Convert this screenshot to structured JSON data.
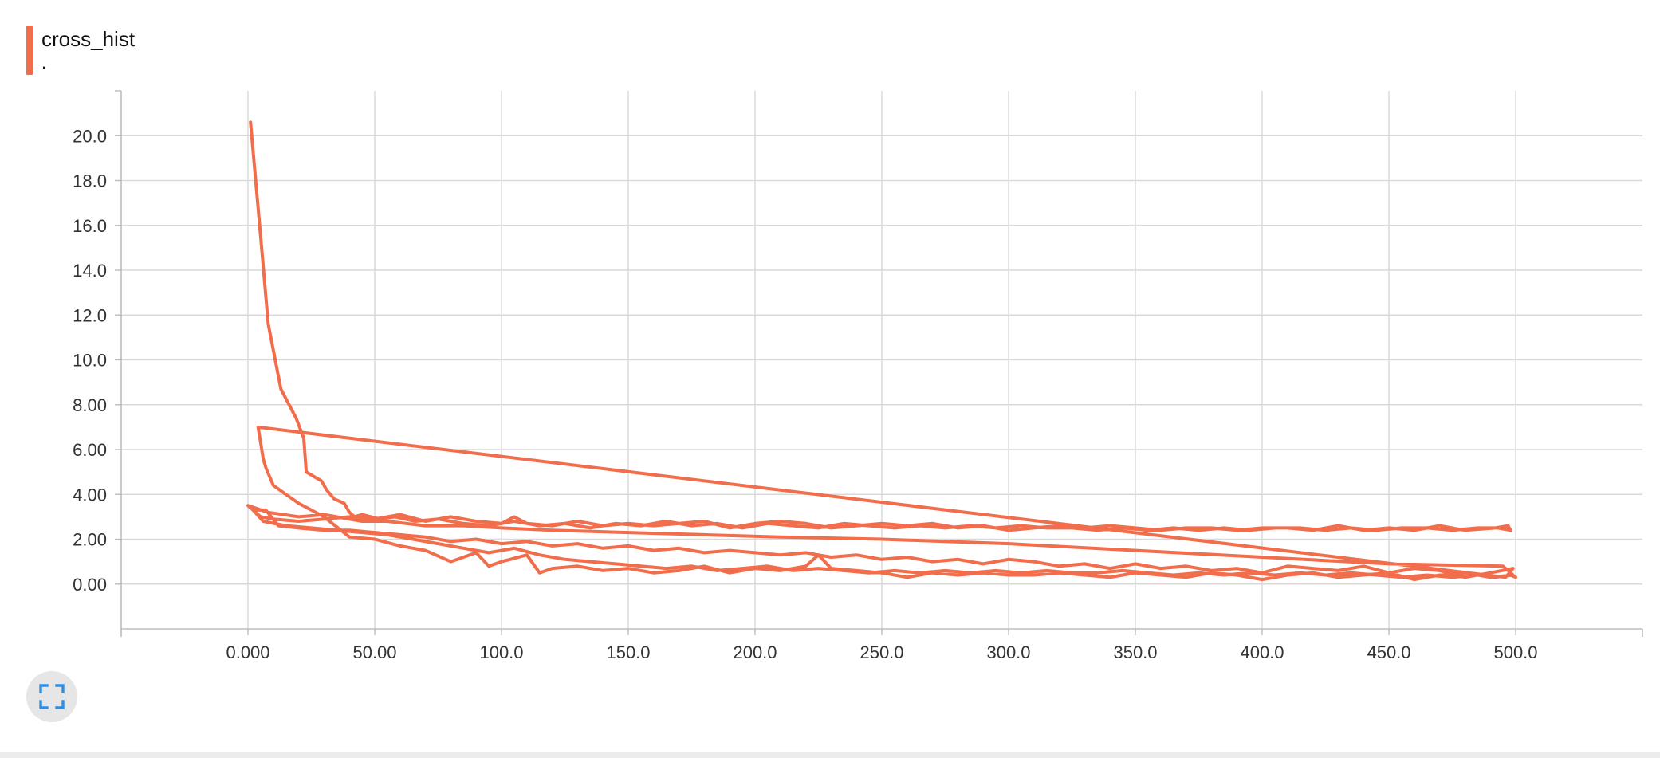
{
  "card": {
    "title": "cross_hist",
    "subtitle": ".",
    "expand_icon": "fullscreen-icon"
  },
  "colors": {
    "series": "#f26d4b",
    "grid": "#d9d9d9",
    "axis": "#bdbdbd",
    "tick_text": "#333333",
    "button_bg": "#e6e6e6",
    "button_icon": "#2f8de4"
  },
  "chart_data": {
    "type": "line",
    "title": "cross_hist",
    "subtitle": ".",
    "xlabel": "",
    "ylabel": "",
    "xlim": [
      -50,
      550
    ],
    "ylim": [
      -2,
      22
    ],
    "grid": true,
    "x_ticks": [
      "0.000",
      "50.00",
      "100.0",
      "150.0",
      "200.0",
      "250.0",
      "300.0",
      "350.0",
      "400.0",
      "450.0",
      "500.0"
    ],
    "y_ticks": [
      "0.00",
      "2.00",
      "4.00",
      "6.00",
      "8.00",
      "10.0",
      "12.0",
      "14.0",
      "16.0",
      "18.0",
      "20.0"
    ],
    "series": [
      {
        "color": "#f26d4b",
        "points": [
          [
            1,
            20.6
          ],
          [
            5,
            15.5
          ],
          [
            8,
            11.6
          ],
          [
            13,
            8.7
          ],
          [
            19,
            7.4
          ],
          [
            22,
            6.5
          ],
          [
            23,
            5.0
          ],
          [
            29,
            4.6
          ],
          [
            31,
            4.2
          ],
          [
            34,
            3.8
          ],
          [
            38,
            3.6
          ],
          [
            40,
            3.2
          ],
          [
            42,
            3.0
          ],
          [
            45,
            3.1
          ],
          [
            52,
            2.9
          ],
          [
            58,
            3.0
          ],
          [
            66,
            2.8
          ],
          [
            75,
            2.9
          ],
          [
            85,
            2.7
          ],
          [
            95,
            2.6
          ],
          [
            105,
            2.8
          ],
          [
            115,
            2.6
          ],
          [
            125,
            2.7
          ],
          [
            135,
            2.5
          ],
          [
            145,
            2.7
          ],
          [
            155,
            2.6
          ],
          [
            165,
            2.8
          ],
          [
            175,
            2.6
          ],
          [
            185,
            2.7
          ],
          [
            195,
            2.5
          ],
          [
            205,
            2.7
          ],
          [
            215,
            2.6
          ],
          [
            225,
            2.5
          ],
          [
            235,
            2.7
          ],
          [
            245,
            2.6
          ],
          [
            255,
            2.5
          ],
          [
            265,
            2.6
          ],
          [
            275,
            2.5
          ],
          [
            285,
            2.6
          ],
          [
            295,
            2.5
          ],
          [
            305,
            2.6
          ],
          [
            315,
            2.5
          ],
          [
            325,
            2.5
          ],
          [
            335,
            2.4
          ],
          [
            345,
            2.5
          ],
          [
            355,
            2.4
          ],
          [
            365,
            2.5
          ],
          [
            375,
            2.4
          ],
          [
            385,
            2.5
          ],
          [
            395,
            2.4
          ],
          [
            405,
            2.5
          ],
          [
            415,
            2.5
          ],
          [
            425,
            2.4
          ],
          [
            435,
            2.5
          ],
          [
            445,
            2.4
          ],
          [
            455,
            2.5
          ],
          [
            465,
            2.5
          ],
          [
            475,
            2.4
          ],
          [
            485,
            2.5
          ],
          [
            493,
            2.5
          ],
          [
            498,
            2.4
          ],
          [
            497,
            2.6
          ],
          [
            492,
            2.5
          ],
          [
            480,
            2.4
          ],
          [
            470,
            2.6
          ],
          [
            460,
            2.4
          ],
          [
            450,
            2.5
          ],
          [
            440,
            2.4
          ],
          [
            430,
            2.6
          ],
          [
            420,
            2.4
          ],
          [
            410,
            2.5
          ],
          [
            400,
            2.5
          ],
          [
            390,
            2.4
          ],
          [
            380,
            2.5
          ],
          [
            370,
            2.5
          ],
          [
            360,
            2.4
          ],
          [
            350,
            2.5
          ],
          [
            340,
            2.6
          ],
          [
            330,
            2.5
          ],
          [
            320,
            2.6
          ],
          [
            310,
            2.5
          ],
          [
            300,
            2.4
          ],
          [
            290,
            2.6
          ],
          [
            280,
            2.5
          ],
          [
            270,
            2.7
          ],
          [
            260,
            2.6
          ],
          [
            250,
            2.7
          ],
          [
            240,
            2.6
          ],
          [
            230,
            2.5
          ],
          [
            220,
            2.7
          ],
          [
            210,
            2.8
          ],
          [
            200,
            2.7
          ],
          [
            190,
            2.5
          ],
          [
            180,
            2.8
          ],
          [
            170,
            2.7
          ],
          [
            160,
            2.6
          ],
          [
            150,
            2.7
          ],
          [
            140,
            2.6
          ],
          [
            130,
            2.8
          ],
          [
            120,
            2.6
          ],
          [
            110,
            2.7
          ],
          [
            105,
            3.0
          ],
          [
            100,
            2.7
          ],
          [
            90,
            2.8
          ],
          [
            80,
            3.0
          ],
          [
            70,
            2.8
          ],
          [
            60,
            3.1
          ],
          [
            50,
            2.9
          ],
          [
            40,
            3.0
          ],
          [
            30,
            2.9
          ],
          [
            20,
            2.8
          ],
          [
            10,
            2.9
          ],
          [
            5,
            3.0
          ],
          [
            0,
            3.5
          ],
          [
            8,
            3.2
          ],
          [
            20,
            3.0
          ],
          [
            30,
            3.1
          ],
          [
            45,
            2.8
          ],
          [
            55,
            2.8
          ],
          [
            70,
            2.6
          ],
          [
            85,
            2.6
          ],
          [
            100,
            2.5
          ],
          [
            120,
            2.4
          ],
          [
            150,
            2.3
          ],
          [
            180,
            2.2
          ],
          [
            210,
            2.1
          ],
          [
            250,
            2.0
          ],
          [
            300,
            1.8
          ],
          [
            350,
            1.5
          ],
          [
            400,
            1.2
          ],
          [
            450,
            0.9
          ],
          [
            495,
            0.8
          ],
          [
            499,
            0.4
          ],
          [
            490,
            0.3
          ],
          [
            480,
            0.5
          ],
          [
            470,
            0.4
          ],
          [
            460,
            0.2
          ],
          [
            450,
            0.5
          ],
          [
            440,
            0.4
          ],
          [
            430,
            0.3
          ],
          [
            420,
            0.5
          ],
          [
            410,
            0.4
          ],
          [
            400,
            0.2
          ],
          [
            390,
            0.4
          ],
          [
            380,
            0.5
          ],
          [
            370,
            0.3
          ],
          [
            360,
            0.4
          ],
          [
            350,
            0.5
          ],
          [
            340,
            0.3
          ],
          [
            330,
            0.4
          ],
          [
            320,
            0.5
          ],
          [
            310,
            0.4
          ],
          [
            300,
            0.4
          ],
          [
            290,
            0.5
          ],
          [
            280,
            0.4
          ],
          [
            270,
            0.5
          ],
          [
            260,
            0.3
          ],
          [
            250,
            0.5
          ],
          [
            240,
            0.6
          ],
          [
            230,
            0.7
          ],
          [
            225,
            1.3
          ],
          [
            220,
            0.8
          ],
          [
            210,
            0.6
          ],
          [
            200,
            0.7
          ],
          [
            190,
            0.5
          ],
          [
            180,
            0.8
          ],
          [
            170,
            0.6
          ],
          [
            160,
            0.5
          ],
          [
            150,
            0.7
          ],
          [
            140,
            0.6
          ],
          [
            130,
            0.8
          ],
          [
            120,
            0.7
          ],
          [
            115,
            0.5
          ],
          [
            110,
            1.3
          ],
          [
            100,
            1.0
          ],
          [
            95,
            0.8
          ],
          [
            90,
            1.4
          ],
          [
            80,
            1.0
          ],
          [
            70,
            1.5
          ],
          [
            60,
            1.7
          ],
          [
            50,
            2.0
          ],
          [
            40,
            2.1
          ],
          [
            30,
            3.0
          ],
          [
            25,
            3.3
          ],
          [
            20,
            3.6
          ],
          [
            10,
            4.4
          ],
          [
            7,
            5.2
          ],
          [
            6,
            5.6
          ],
          [
            4,
            7.0
          ],
          [
            496,
            0.3
          ],
          [
            499,
            0.7
          ],
          [
            490,
            0.5
          ],
          [
            480,
            0.3
          ],
          [
            470,
            0.6
          ],
          [
            460,
            0.7
          ],
          [
            450,
            0.5
          ],
          [
            440,
            0.8
          ],
          [
            430,
            0.6
          ],
          [
            420,
            0.7
          ],
          [
            410,
            0.8
          ],
          [
            400,
            0.5
          ],
          [
            390,
            0.7
          ],
          [
            380,
            0.6
          ],
          [
            370,
            0.8
          ],
          [
            360,
            0.7
          ],
          [
            350,
            0.9
          ],
          [
            340,
            0.7
          ],
          [
            330,
            0.9
          ],
          [
            320,
            0.8
          ],
          [
            310,
            1.0
          ],
          [
            300,
            1.1
          ],
          [
            290,
            0.9
          ],
          [
            280,
            1.1
          ],
          [
            270,
            1.0
          ],
          [
            260,
            1.2
          ],
          [
            250,
            1.1
          ],
          [
            240,
            1.3
          ],
          [
            230,
            1.2
          ],
          [
            220,
            1.4
          ],
          [
            210,
            1.3
          ],
          [
            200,
            1.4
          ],
          [
            190,
            1.5
          ],
          [
            180,
            1.4
          ],
          [
            170,
            1.6
          ],
          [
            160,
            1.5
          ],
          [
            150,
            1.7
          ],
          [
            140,
            1.6
          ],
          [
            130,
            1.8
          ],
          [
            120,
            1.7
          ],
          [
            110,
            1.9
          ],
          [
            100,
            1.8
          ],
          [
            90,
            2.0
          ],
          [
            80,
            1.9
          ],
          [
            70,
            2.1
          ],
          [
            60,
            2.2
          ],
          [
            50,
            2.3
          ],
          [
            40,
            2.4
          ],
          [
            30,
            2.4
          ],
          [
            20,
            2.5
          ],
          [
            12,
            2.6
          ],
          [
            7,
            3.3
          ],
          [
            2,
            3.3
          ],
          [
            6,
            2.8
          ],
          [
            15,
            2.6
          ],
          [
            25,
            2.5
          ],
          [
            35,
            2.4
          ],
          [
            45,
            2.3
          ],
          [
            55,
            2.2
          ],
          [
            65,
            2.0
          ],
          [
            75,
            1.8
          ],
          [
            85,
            1.6
          ],
          [
            95,
            1.4
          ],
          [
            105,
            1.6
          ],
          [
            115,
            1.3
          ],
          [
            125,
            1.1
          ],
          [
            135,
            1.0
          ],
          [
            145,
            0.9
          ],
          [
            155,
            0.8
          ],
          [
            165,
            0.7
          ],
          [
            175,
            0.8
          ],
          [
            185,
            0.6
          ],
          [
            195,
            0.7
          ],
          [
            205,
            0.8
          ],
          [
            215,
            0.6
          ],
          [
            225,
            0.7
          ],
          [
            235,
            0.6
          ],
          [
            245,
            0.5
          ],
          [
            255,
            0.6
          ],
          [
            265,
            0.5
          ],
          [
            275,
            0.6
          ],
          [
            285,
            0.5
          ],
          [
            295,
            0.6
          ],
          [
            305,
            0.5
          ],
          [
            315,
            0.6
          ],
          [
            325,
            0.5
          ],
          [
            335,
            0.5
          ],
          [
            345,
            0.6
          ],
          [
            355,
            0.5
          ],
          [
            365,
            0.4
          ],
          [
            375,
            0.5
          ],
          [
            385,
            0.4
          ],
          [
            395,
            0.5
          ],
          [
            405,
            0.4
          ],
          [
            415,
            0.5
          ],
          [
            425,
            0.4
          ],
          [
            435,
            0.5
          ],
          [
            445,
            0.4
          ],
          [
            455,
            0.3
          ],
          [
            465,
            0.4
          ],
          [
            475,
            0.3
          ],
          [
            485,
            0.4
          ],
          [
            492,
            0.3
          ],
          [
            498,
            0.4
          ],
          [
            500,
            0.3
          ]
        ]
      }
    ]
  }
}
